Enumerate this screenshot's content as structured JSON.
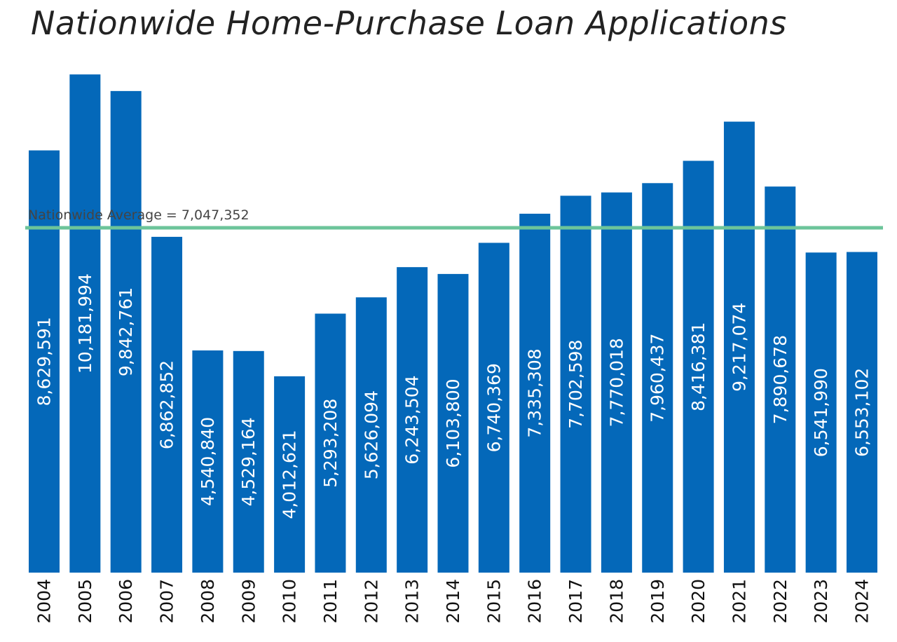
{
  "chart_data": {
    "type": "bar",
    "title": "Nationwide Home-Purchase Loan Applications",
    "xlabel": "",
    "ylabel": "",
    "categories": [
      "2004",
      "2005",
      "2006",
      "2007",
      "2008",
      "2009",
      "2010",
      "2011",
      "2012",
      "2013",
      "2014",
      "2015",
      "2016",
      "2017",
      "2018",
      "2019",
      "2020",
      "2021",
      "2022",
      "2023",
      "2024"
    ],
    "values": [
      8629591,
      10181994,
      9842761,
      6862852,
      4540840,
      4529164,
      4012621,
      5293208,
      5626094,
      6243504,
      6103800,
      6740369,
      7335308,
      7702598,
      7770018,
      7960437,
      8416381,
      9217074,
      7890678,
      6541990,
      6553102
    ],
    "data_labels": [
      "8,629,591",
      "10,181,994",
      "9,842,761",
      "6,862,852",
      "4,540,840",
      "4,529,164",
      "4,012,621",
      "5,293,208",
      "5,626,094",
      "6,243,504",
      "6,103,800",
      "6,740,369",
      "7,335,308",
      "7,702,598",
      "7,770,018",
      "7,960,437",
      "8,416,381",
      "9,217,074",
      "7,890,678",
      "6,541,990",
      "6,553,102"
    ],
    "ylim": [
      0,
      10500000
    ],
    "grid": false,
    "legend": "none",
    "reference_line": {
      "value": 7047352,
      "label": "Nationwide Average = 7,047,352",
      "color": "#6cc49a"
    },
    "colors": {
      "bar": "#0468b9",
      "bar_label": "#ffffff",
      "average_line": "#6cc49a"
    }
  }
}
